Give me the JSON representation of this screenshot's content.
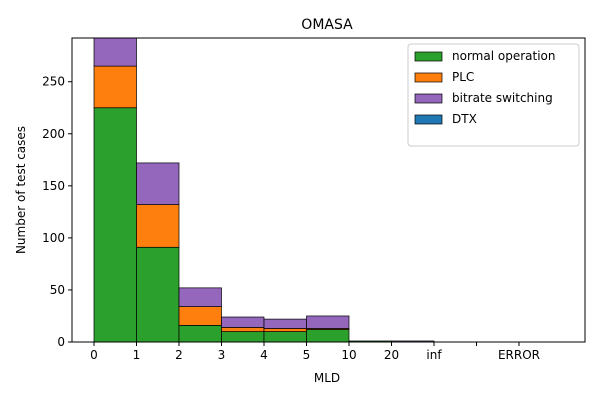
{
  "chart_data": {
    "type": "bar",
    "stacked": true,
    "title": "OMASA",
    "xlabel": "MLD",
    "ylabel": "Number of test cases",
    "x_tick_labels": [
      "0",
      "1",
      "2",
      "3",
      "4",
      "5",
      "10",
      "20",
      "inf",
      "",
      "ERROR"
    ],
    "bins": [
      "0-1",
      "1-2",
      "2-3",
      "3-4",
      "4-5",
      "5-10",
      "10-20",
      "20-inf",
      "inf-",
      "-ERROR",
      "ERROR-"
    ],
    "ylim": [
      0,
      292
    ],
    "y_ticks": [
      0,
      50,
      100,
      150,
      200,
      250
    ],
    "legend_position": "upper right",
    "series": [
      {
        "name": "normal operation",
        "color": "#2ca02c",
        "values": [
          225,
          91,
          16,
          10,
          10,
          12,
          1,
          0,
          0,
          0,
          0
        ]
      },
      {
        "name": "PLC",
        "color": "#ff7f0e",
        "values": [
          40,
          41,
          18,
          4,
          3,
          1,
          0,
          0,
          0,
          0,
          0
        ]
      },
      {
        "name": "bitrate switching",
        "color": "#9467bd",
        "values": [
          30,
          40,
          18,
          10,
          9,
          12,
          0,
          1,
          0,
          0,
          0
        ]
      },
      {
        "name": "DTX",
        "color": "#1f77b4",
        "values": [
          0,
          0,
          0,
          0,
          0,
          0,
          0,
          0,
          0,
          0,
          0
        ]
      }
    ]
  }
}
